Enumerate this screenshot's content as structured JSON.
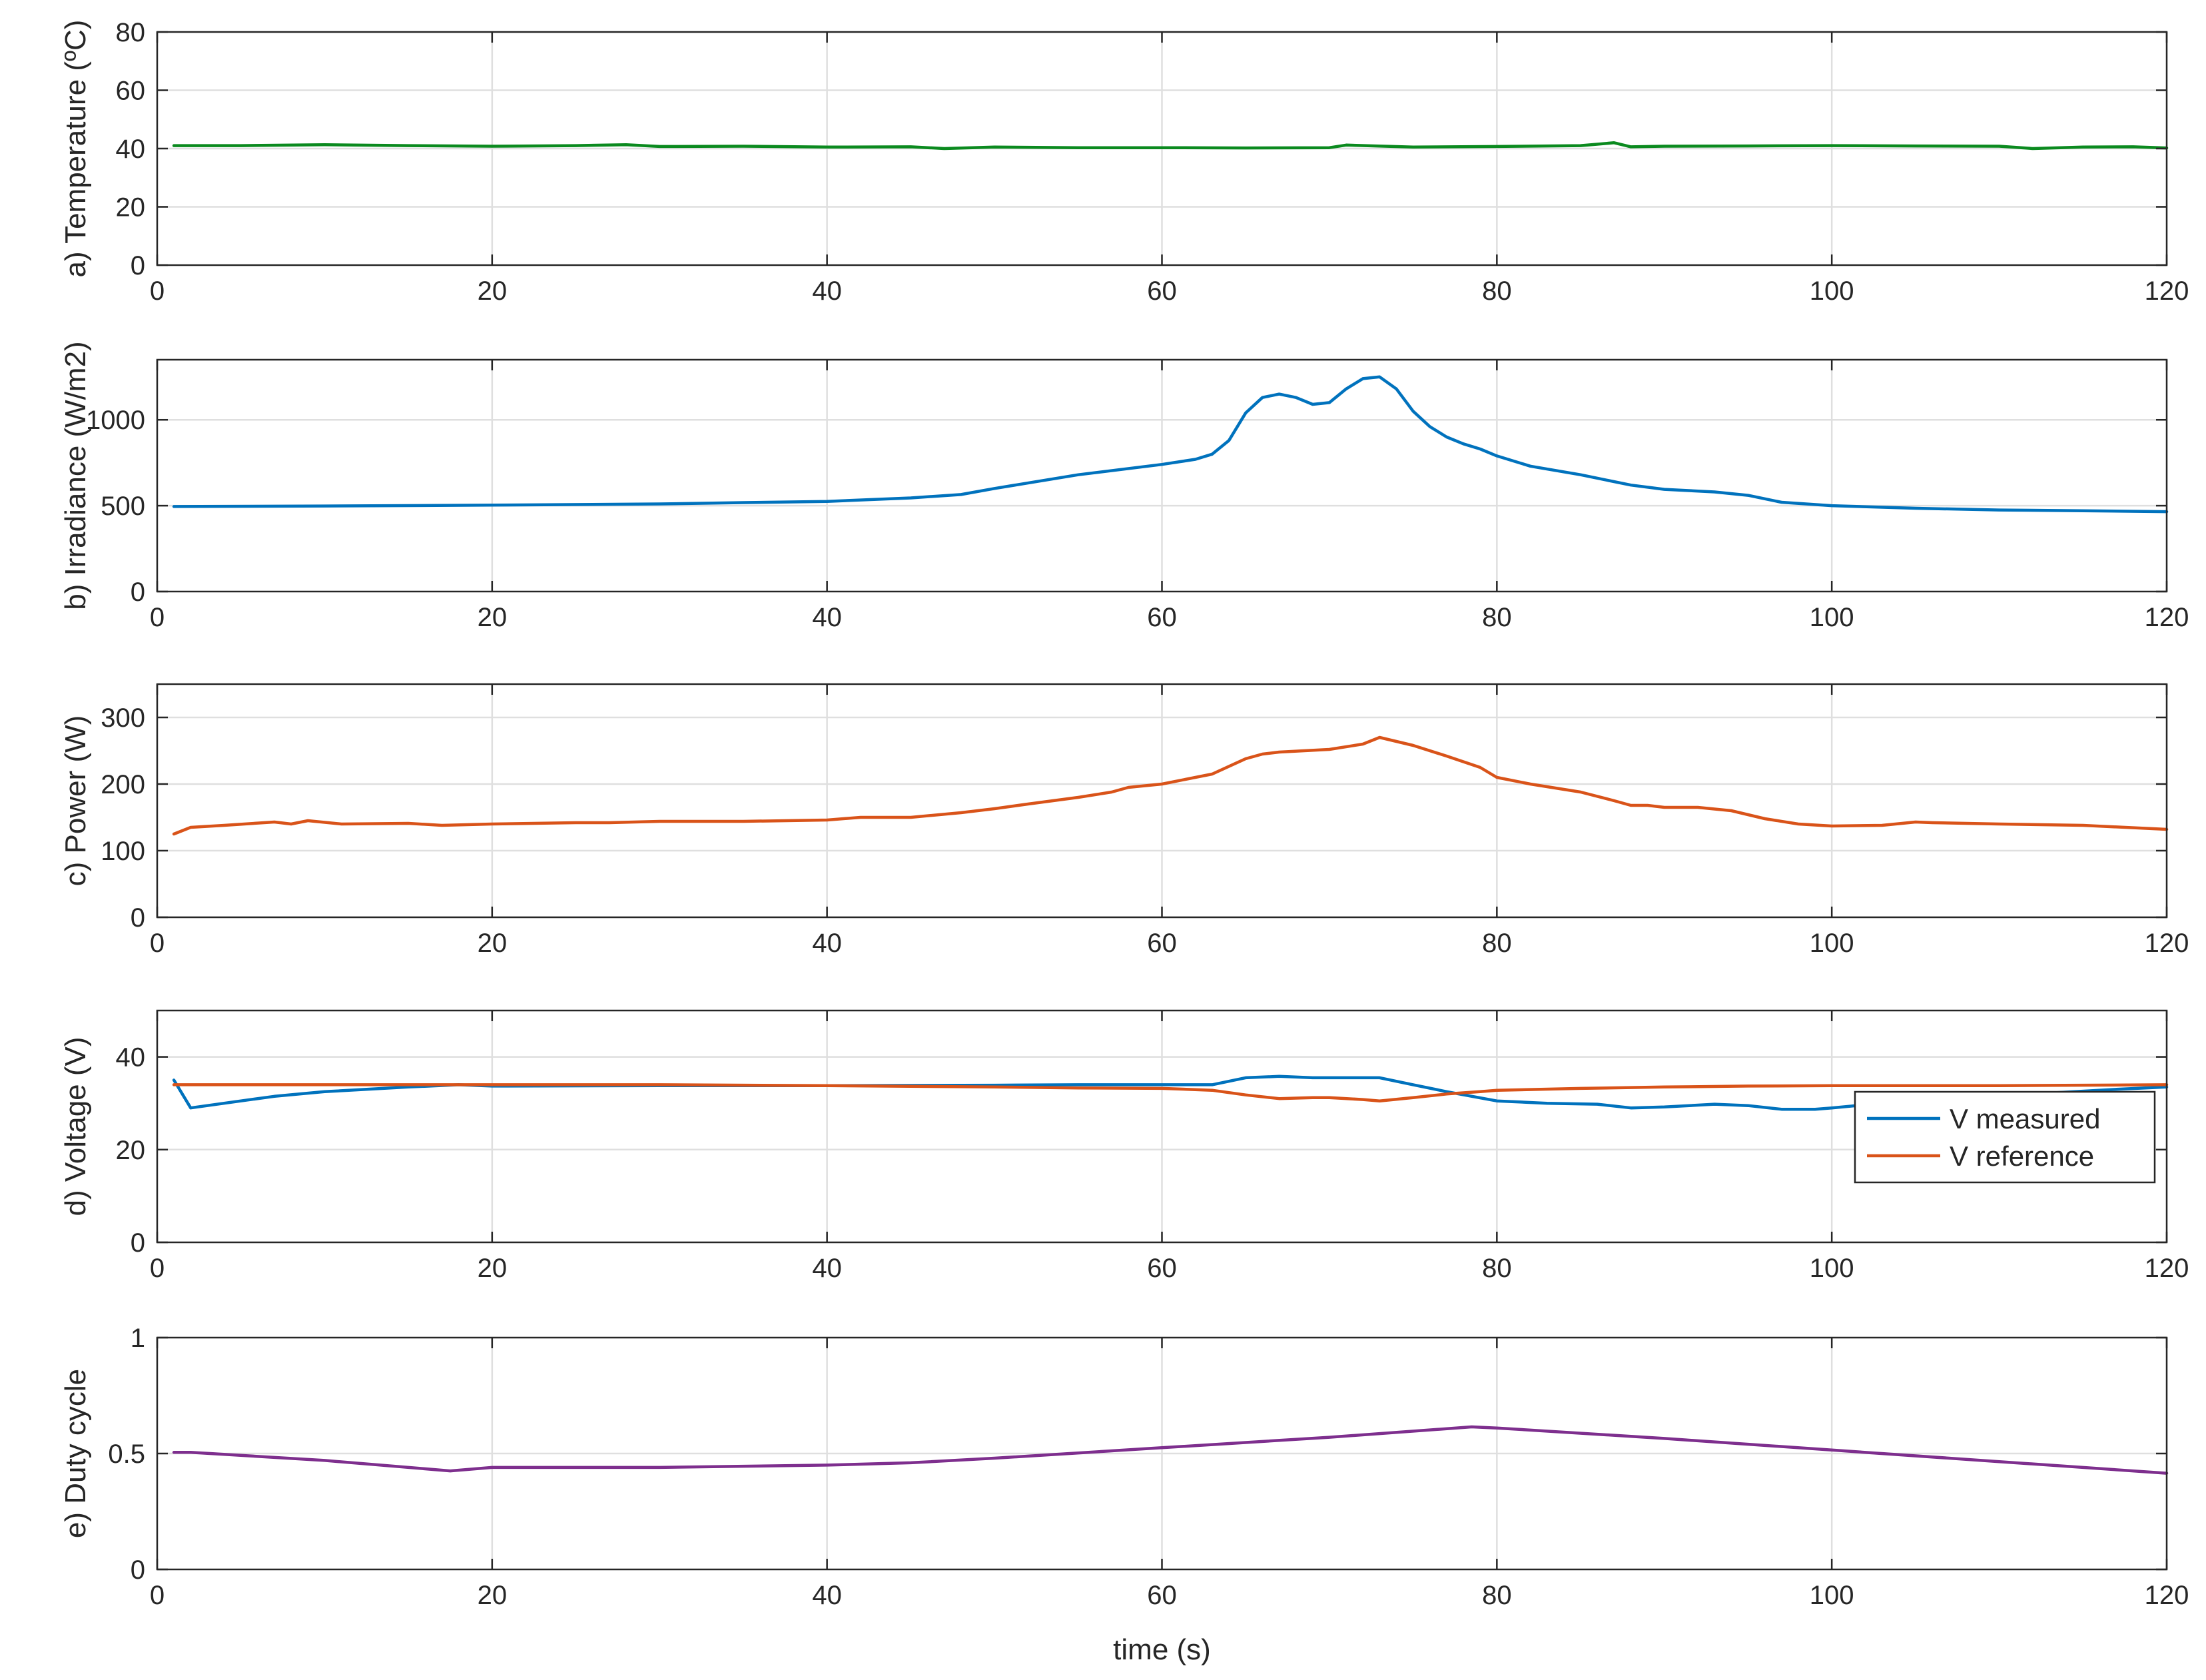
{
  "chart_data": [
    {
      "type": "line",
      "xlabel": "",
      "ylabel": "a) Temperature (ºC)",
      "xlim": [
        0,
        120
      ],
      "ylim": [
        0,
        80
      ],
      "xticks": [
        0,
        20,
        40,
        60,
        80,
        100,
        120
      ],
      "yticks": [
        0,
        20,
        40,
        60,
        80
      ],
      "grid": true,
      "series": [
        {
          "color": "#0b8a1f",
          "x": [
            1,
            5,
            10,
            15,
            20,
            25,
            28,
            30,
            35,
            40,
            45,
            47,
            50,
            55,
            60,
            65,
            70,
            71,
            75,
            80,
            85,
            87,
            88,
            90,
            95,
            100,
            105,
            110,
            112,
            115,
            118,
            120
          ],
          "y": [
            41,
            41,
            41.3,
            41,
            40.8,
            41,
            41.3,
            40.7,
            40.8,
            40.5,
            40.6,
            40,
            40.5,
            40.3,
            40.3,
            40.2,
            40.3,
            41.2,
            40.5,
            40.7,
            41,
            42,
            40.6,
            40.8,
            40.9,
            41,
            40.9,
            40.8,
            40,
            40.5,
            40.6,
            40.2
          ]
        }
      ]
    },
    {
      "type": "line",
      "xlabel": "",
      "ylabel": "b) Irradiance (W/m2)",
      "xlim": [
        0,
        120
      ],
      "ylim": [
        0,
        1350
      ],
      "xticks": [
        0,
        20,
        40,
        60,
        80,
        100,
        120
      ],
      "yticks": [
        0,
        500,
        1000
      ],
      "grid": true,
      "series": [
        {
          "color": "#0072bd",
          "x": [
            1,
            10,
            20,
            30,
            35,
            40,
            45,
            48,
            50,
            55,
            60,
            62,
            63,
            64,
            65,
            66,
            67,
            68,
            69,
            70,
            71,
            72,
            73,
            74,
            75,
            76,
            77,
            78,
            79,
            80,
            82,
            85,
            88,
            90,
            93,
            95,
            97,
            100,
            105,
            110,
            115,
            120
          ],
          "y": [
            495,
            498,
            503,
            510,
            518,
            525,
            545,
            565,
            600,
            680,
            740,
            770,
            800,
            880,
            1040,
            1130,
            1150,
            1130,
            1090,
            1100,
            1180,
            1240,
            1250,
            1180,
            1050,
            960,
            900,
            860,
            830,
            790,
            730,
            680,
            620,
            595,
            580,
            560,
            520,
            500,
            485,
            475,
            470,
            465
          ]
        }
      ]
    },
    {
      "type": "line",
      "xlabel": "",
      "ylabel": "c) Power (W)",
      "xlim": [
        0,
        120
      ],
      "ylim": [
        0,
        350
      ],
      "xticks": [
        0,
        20,
        40,
        60,
        80,
        100,
        120
      ],
      "yticks": [
        0,
        100,
        200,
        300
      ],
      "grid": true,
      "series": [
        {
          "color": "#d95319",
          "x": [
            1,
            2,
            4,
            7,
            8,
            9,
            11,
            15,
            17,
            20,
            25,
            27,
            30,
            35,
            40,
            42,
            45,
            48,
            50,
            52,
            55,
            57,
            58,
            60,
            63,
            65,
            66,
            67,
            70,
            72,
            73,
            75,
            77,
            79,
            80,
            82,
            85,
            87,
            88,
            89,
            90,
            92,
            94,
            96,
            98,
            100,
            103,
            105,
            106,
            110,
            115,
            120
          ],
          "y": [
            125,
            135,
            138,
            143,
            140,
            145,
            140,
            141,
            138,
            140,
            142,
            142,
            144,
            144,
            146,
            150,
            150,
            157,
            163,
            170,
            180,
            188,
            195,
            200,
            215,
            238,
            245,
            248,
            252,
            260,
            270,
            258,
            242,
            225,
            210,
            200,
            188,
            175,
            168,
            168,
            165,
            165,
            160,
            148,
            140,
            137,
            138,
            143,
            142,
            140,
            138,
            132
          ]
        }
      ]
    },
    {
      "type": "line",
      "xlabel": "",
      "ylabel": "d) Voltage (V)",
      "xlim": [
        0,
        120
      ],
      "ylim": [
        0,
        50
      ],
      "xticks": [
        0,
        20,
        40,
        60,
        80,
        100,
        120
      ],
      "yticks": [
        0,
        20,
        40
      ],
      "grid": true,
      "legend": "bottom-right",
      "series": [
        {
          "name": "V measured",
          "color": "#0072bd",
          "x": [
            1,
            2,
            5,
            7,
            10,
            15,
            18,
            20,
            30,
            40,
            50,
            55,
            60,
            63,
            65,
            67,
            69,
            73,
            75,
            77,
            80,
            83,
            86,
            88,
            90,
            93,
            95,
            97,
            99,
            100,
            103,
            107,
            112,
            117,
            120
          ],
          "y": [
            35,
            29,
            30.5,
            31.5,
            32.5,
            33.5,
            34,
            33.7,
            33.8,
            33.8,
            33.9,
            34,
            34,
            34,
            35.5,
            35.8,
            35.5,
            35.5,
            34,
            32.5,
            30.5,
            30,
            29.8,
            29,
            29.2,
            29.8,
            29.5,
            28.7,
            28.7,
            29,
            30,
            31,
            32,
            33,
            33.5
          ]
        },
        {
          "name": "V reference",
          "color": "#d95319",
          "x": [
            1,
            5,
            10,
            20,
            30,
            40,
            50,
            55,
            60,
            63,
            65,
            67,
            69,
            70,
            72,
            73,
            75,
            77,
            79,
            80,
            85,
            90,
            95,
            100,
            110,
            120
          ],
          "y": [
            34,
            34,
            34,
            34,
            34,
            33.8,
            33.5,
            33.3,
            33.2,
            32.8,
            31.8,
            31,
            31.2,
            31.2,
            30.8,
            30.5,
            31.2,
            32,
            32.5,
            32.8,
            33.2,
            33.5,
            33.7,
            33.8,
            33.8,
            34
          ]
        }
      ]
    },
    {
      "type": "line",
      "xlabel": "time (s)",
      "ylabel": "e) Duty cycle",
      "xlim": [
        0,
        120
      ],
      "ylim": [
        0,
        1
      ],
      "xticks": [
        0,
        20,
        40,
        60,
        80,
        100,
        120
      ],
      "yticks": [
        0,
        0.5,
        1
      ],
      "grid": true,
      "series": [
        {
          "color": "#7e2f8e",
          "x": [
            1,
            2,
            10,
            17.5,
            20,
            30,
            40,
            45,
            50,
            60,
            70,
            78.5,
            80,
            90,
            100,
            110,
            120
          ],
          "y": [
            0.505,
            0.505,
            0.47,
            0.425,
            0.44,
            0.44,
            0.45,
            0.46,
            0.48,
            0.525,
            0.57,
            0.615,
            0.61,
            0.565,
            0.515,
            0.465,
            0.415
          ]
        }
      ]
    }
  ]
}
